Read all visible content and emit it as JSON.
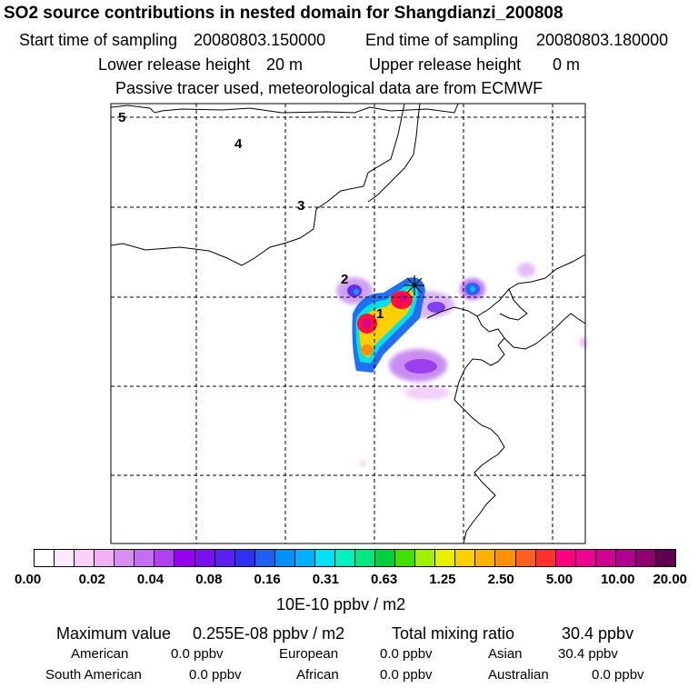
{
  "header": {
    "title": "SO2 source contributions in nested domain for Shangdianzi_200808",
    "start_label": "Start time of sampling",
    "start_value": "20080803.150000",
    "end_label": "End time of sampling",
    "end_value": "20080803.180000",
    "lower_label": "Lower release height",
    "lower_value": "20 m",
    "upper_label": "Upper release height",
    "upper_value": "0 m",
    "tracer_note": "Passive tracer used, meteorological data are from ECMWF"
  },
  "map": {
    "day_labels": [
      "5",
      "4",
      "3",
      "2",
      "1"
    ],
    "station_marker": "×"
  },
  "colorbar": {
    "colors": [
      "#ffffff",
      "#fde8fd",
      "#f8d0f8",
      "#efb0f4",
      "#d68ef2",
      "#c46ef2",
      "#b040f0",
      "#9a00f0",
      "#7a10f0",
      "#5a20f0",
      "#3030f0",
      "#2060f0",
      "#0090f8",
      "#00b0ff",
      "#00e0f8",
      "#00f0c0",
      "#00e880",
      "#00d040",
      "#40e000",
      "#a0f000",
      "#e8f000",
      "#ffd000",
      "#ffb000",
      "#ff9000",
      "#ff6020",
      "#ff3030",
      "#ff0080",
      "#f00090",
      "#d00090",
      "#b00090",
      "#900070",
      "#600050"
    ],
    "tick_labels": [
      "0.00",
      "0.02",
      "0.04",
      "0.08",
      "0.16",
      "0.31",
      "0.63",
      "1.25",
      "2.50",
      "5.00",
      "10.00",
      "20.00"
    ],
    "unit_label": "10E-10 ppbv / m2"
  },
  "summary": {
    "max_label": "Maximum value",
    "max_value": "0.255E-08 ppbv / m2",
    "total_label": "Total mixing ratio",
    "total_value": "30.4 ppbv",
    "regions": [
      {
        "name": "American",
        "value": "0.0 ppbv"
      },
      {
        "name": "European",
        "value": "0.0 ppbv"
      },
      {
        "name": "Asian",
        "value": "30.4 ppbv"
      },
      {
        "name": "South American",
        "value": "0.0 ppbv"
      },
      {
        "name": "African",
        "value": "0.0 ppbv"
      },
      {
        "name": "Australian",
        "value": "0.0 ppbv"
      }
    ]
  }
}
